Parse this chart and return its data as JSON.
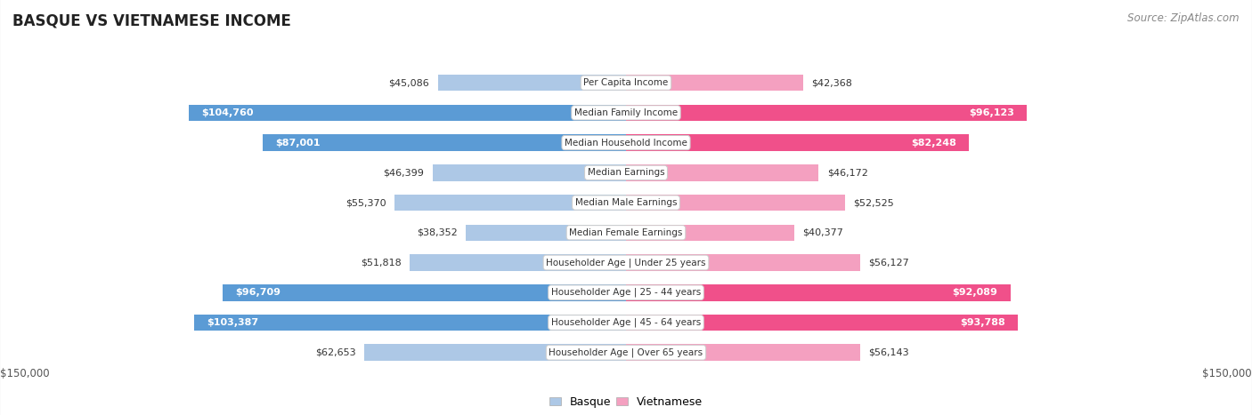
{
  "title": "BASQUE VS VIETNAMESE INCOME",
  "source": "Source: ZipAtlas.com",
  "categories": [
    "Per Capita Income",
    "Median Family Income",
    "Median Household Income",
    "Median Earnings",
    "Median Male Earnings",
    "Median Female Earnings",
    "Householder Age | Under 25 years",
    "Householder Age | 25 - 44 years",
    "Householder Age | 45 - 64 years",
    "Householder Age | Over 65 years"
  ],
  "basque_values": [
    45086,
    104760,
    87001,
    46399,
    55370,
    38352,
    51818,
    96709,
    103387,
    62653
  ],
  "vietnamese_values": [
    42368,
    96123,
    82248,
    46172,
    52525,
    40377,
    56127,
    92089,
    93788,
    56143
  ],
  "basque_color_light": "#adc8e6",
  "basque_color_dark": "#5b9bd5",
  "vietnamese_color_light": "#f4a0c0",
  "vietnamese_color_dark": "#f0508a",
  "max_value": 150000,
  "background_color": "#f0f0f0",
  "row_bg_even": "#ffffff",
  "row_bg_odd": "#f7f7f7",
  "label_bg_color": "#ffffff",
  "title_fontsize": 12,
  "source_fontsize": 8.5,
  "bar_label_fontsize": 8,
  "category_fontsize": 7.5,
  "axis_label_fontsize": 8.5,
  "dark_threshold": 80000
}
